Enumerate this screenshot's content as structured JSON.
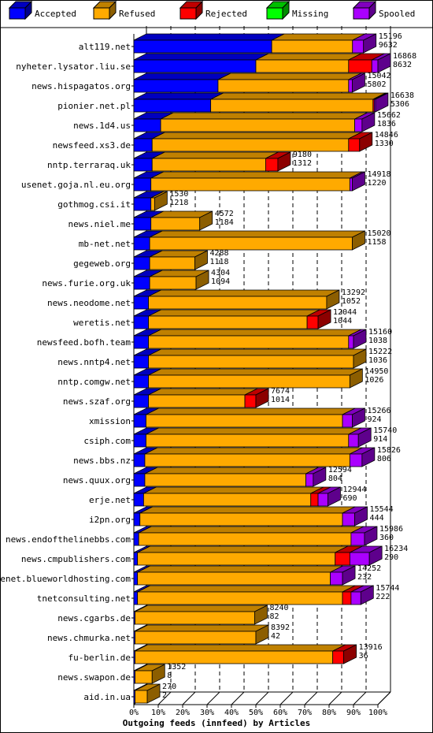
{
  "chart_data": {
    "type": "bar",
    "orientation": "horizontal",
    "stacked": true,
    "three_d": true,
    "xlabel": "Outgoing feeds (innfeed) by Articles",
    "xlim": [
      0,
      100
    ],
    "x_ticks": [
      "0%",
      "10%",
      "20%",
      "30%",
      "40%",
      "50%",
      "60%",
      "70%",
      "80%",
      "90%",
      "100%"
    ],
    "legend_position": "top",
    "series": [
      {
        "name": "Accepted",
        "color": "#0000ff"
      },
      {
        "name": "Refused",
        "color": "#ffaa00"
      },
      {
        "name": "Rejected",
        "color": "#ff0000"
      },
      {
        "name": "Missing",
        "color": "#00ff00"
      },
      {
        "name": "Spooled",
        "color": "#aa00ff"
      }
    ],
    "rows": [
      {
        "name": "alt119.net",
        "total": "15196",
        "accepted": "9632",
        "pct": [
          56.5,
          33.1,
          0,
          0,
          4.5
        ]
      },
      {
        "name": "nyheter.lysator.liu.se",
        "total": "16868",
        "accepted": "8632",
        "pct": [
          50.0,
          38.0,
          9.5,
          0,
          2.5
        ]
      },
      {
        "name": "news.hispagatos.org",
        "total": "15042",
        "accepted": "5802",
        "pct": [
          34.5,
          53.5,
          0,
          0,
          1.5
        ]
      },
      {
        "name": "pionier.net.pl",
        "total": "16638",
        "accepted": "5306",
        "pct": [
          31.5,
          66.5,
          0.5,
          0,
          0.5
        ]
      },
      {
        "name": "news.1d4.us",
        "total": "15662",
        "accepted": "1836",
        "pct": [
          11.0,
          79.5,
          0,
          0,
          3.0
        ]
      },
      {
        "name": "newsfeed.xs3.de",
        "total": "14846",
        "accepted": "1330",
        "pct": [
          7.5,
          80.5,
          4.5,
          0,
          0
        ]
      },
      {
        "name": "nntp.terraraq.uk",
        "total": "9180",
        "accepted": "1312",
        "pct": [
          7.5,
          46.5,
          5.0,
          0,
          0
        ]
      },
      {
        "name": "usenet.goja.nl.eu.org",
        "total": "14918",
        "accepted": "1220",
        "pct": [
          7.0,
          81.5,
          0,
          0,
          1.0
        ]
      },
      {
        "name": "gothmog.csi.it",
        "total": "1530",
        "accepted": "1218",
        "pct": [
          7.0,
          1.5,
          0,
          0,
          0
        ]
      },
      {
        "name": "news.niel.me",
        "total": "4572",
        "accepted": "1184",
        "pct": [
          7.0,
          20.0,
          0,
          0,
          0
        ]
      },
      {
        "name": "mb-net.net",
        "total": "15020",
        "accepted": "1158",
        "pct": [
          6.5,
          83.0,
          0,
          0,
          0
        ]
      },
      {
        "name": "gegeweb.org",
        "total": "4288",
        "accepted": "1118",
        "pct": [
          6.5,
          18.5,
          0,
          0,
          0
        ]
      },
      {
        "name": "news.furie.org.uk",
        "total": "4304",
        "accepted": "1094",
        "pct": [
          6.5,
          19.0,
          0,
          0,
          0
        ]
      },
      {
        "name": "news.neodome.net",
        "total": "13292",
        "accepted": "1052",
        "pct": [
          6.0,
          73.0,
          0,
          0,
          0
        ]
      },
      {
        "name": "weretis.net",
        "total": "12044",
        "accepted": "1044",
        "pct": [
          6.0,
          65.0,
          4.5,
          0,
          0
        ]
      },
      {
        "name": "newsfeed.bofh.team",
        "total": "15160",
        "accepted": "1038",
        "pct": [
          6.0,
          82.0,
          0,
          0,
          2.0
        ]
      },
      {
        "name": "news.nntp4.net",
        "total": "15222",
        "accepted": "1036",
        "pct": [
          6.0,
          84.0,
          0,
          0,
          0
        ]
      },
      {
        "name": "nntp.comgw.net",
        "total": "14950",
        "accepted": "1026",
        "pct": [
          6.0,
          82.5,
          0,
          0,
          0
        ]
      },
      {
        "name": "news.szaf.org",
        "total": "7674",
        "accepted": "1014",
        "pct": [
          6.0,
          39.5,
          4.5,
          0,
          0
        ]
      },
      {
        "name": "xmission",
        "total": "15266",
        "accepted": "924",
        "pct": [
          5.0,
          80.5,
          0,
          0,
          4.0
        ]
      },
      {
        "name": "csiph.com",
        "total": "15740",
        "accepted": "914",
        "pct": [
          5.0,
          83.0,
          0,
          0,
          4.0
        ]
      },
      {
        "name": "news.bbs.nz",
        "total": "15826",
        "accepted": "806",
        "pct": [
          4.5,
          84.0,
          0,
          0,
          5.0
        ]
      },
      {
        "name": "news.quux.org",
        "total": "12594",
        "accepted": "804",
        "pct": [
          4.5,
          66.0,
          0,
          0,
          3.0
        ]
      },
      {
        "name": "erje.net",
        "total": "12944",
        "accepted": "690",
        "pct": [
          4.0,
          68.5,
          3.0,
          0,
          4.0
        ]
      },
      {
        "name": "i2pn.org",
        "total": "15544",
        "accepted": "444",
        "pct": [
          2.5,
          83.0,
          0,
          0,
          5.0
        ]
      },
      {
        "name": "news.endofthelinebbs.com",
        "total": "15986",
        "accepted": "360",
        "pct": [
          2.0,
          87.0,
          0,
          0,
          5.5
        ]
      },
      {
        "name": "news.cmpublishers.com",
        "total": "16234",
        "accepted": "290",
        "pct": [
          1.5,
          81.0,
          6.0,
          0,
          8.0
        ]
      },
      {
        "name": "usenet.blueworldhosting.com",
        "total": "14252",
        "accepted": "232",
        "pct": [
          1.5,
          79.0,
          0,
          0,
          5.0
        ]
      },
      {
        "name": "tnetconsulting.net",
        "total": "15744",
        "accepted": "222",
        "pct": [
          1.5,
          84.0,
          3.5,
          0,
          4.0
        ]
      },
      {
        "name": "news.cgarbs.de",
        "total": "8240",
        "accepted": "82",
        "pct": [
          0.5,
          49.0,
          0,
          0,
          0
        ]
      },
      {
        "name": "news.chmurka.net",
        "total": "8392",
        "accepted": "42",
        "pct": [
          0.5,
          49.5,
          0,
          0,
          0
        ]
      },
      {
        "name": "fu-berlin.de",
        "total": "13916",
        "accepted": "36",
        "pct": [
          0.5,
          81.0,
          4.5,
          0,
          0
        ]
      },
      {
        "name": "news.swapon.de",
        "total": "1352",
        "accepted": "8",
        "pct": [
          0.5,
          7.0,
          0,
          0,
          0
        ]
      },
      {
        "name": "aid.in.ua",
        "total": "270",
        "accepted": "2",
        "pct": [
          0.5,
          5.0,
          0,
          0,
          0
        ]
      }
    ]
  }
}
